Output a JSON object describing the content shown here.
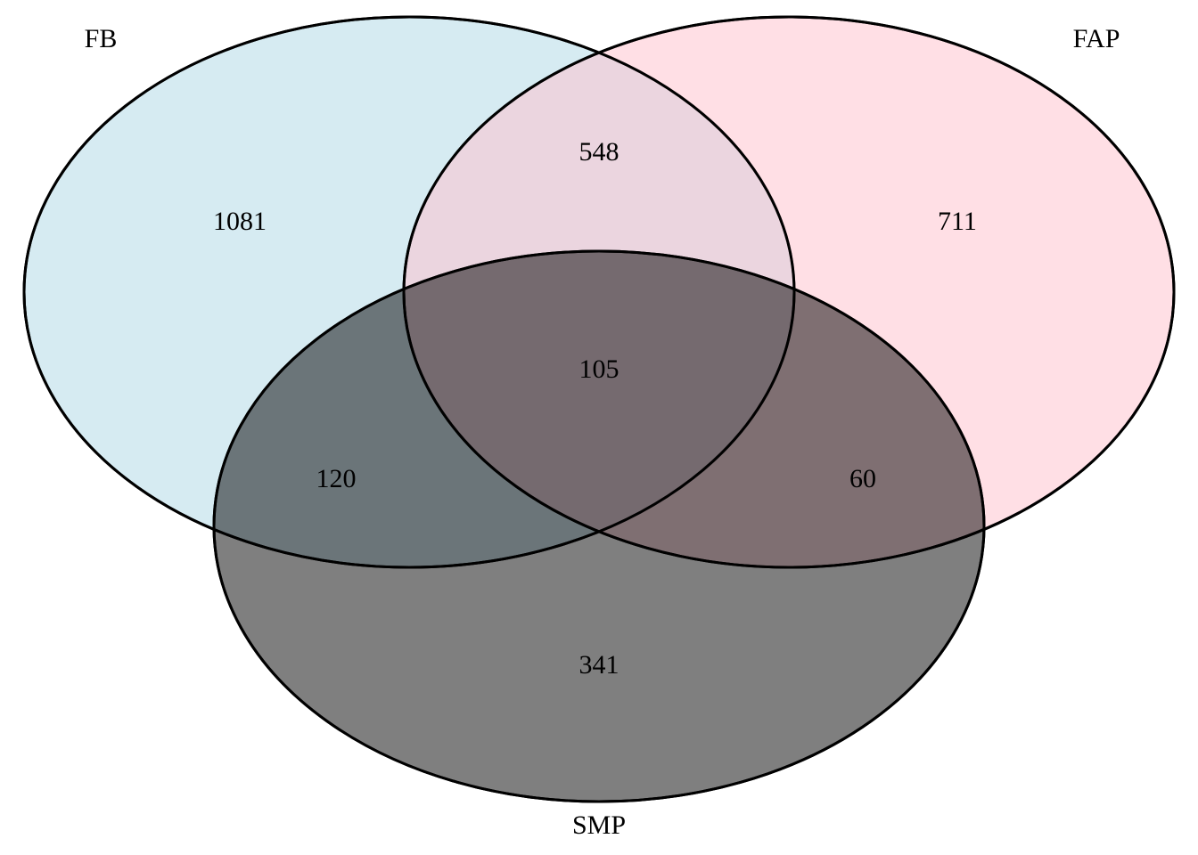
{
  "sets": [
    {
      "id": "fb",
      "label": "FB",
      "color": "#add8e6",
      "opacity": 0.5
    },
    {
      "id": "fap",
      "label": "FAP",
      "color": "#ffc0cb",
      "opacity": 0.5
    },
    {
      "id": "smp",
      "label": "SMP",
      "color": "#000000",
      "opacity": 0.5
    }
  ],
  "regions": {
    "fb_only": "1081",
    "fap_only": "711",
    "smp_only": "341",
    "fb_fap": "548",
    "fb_smp": "120",
    "fap_smp": "60",
    "fb_fap_smp": "105"
  }
}
